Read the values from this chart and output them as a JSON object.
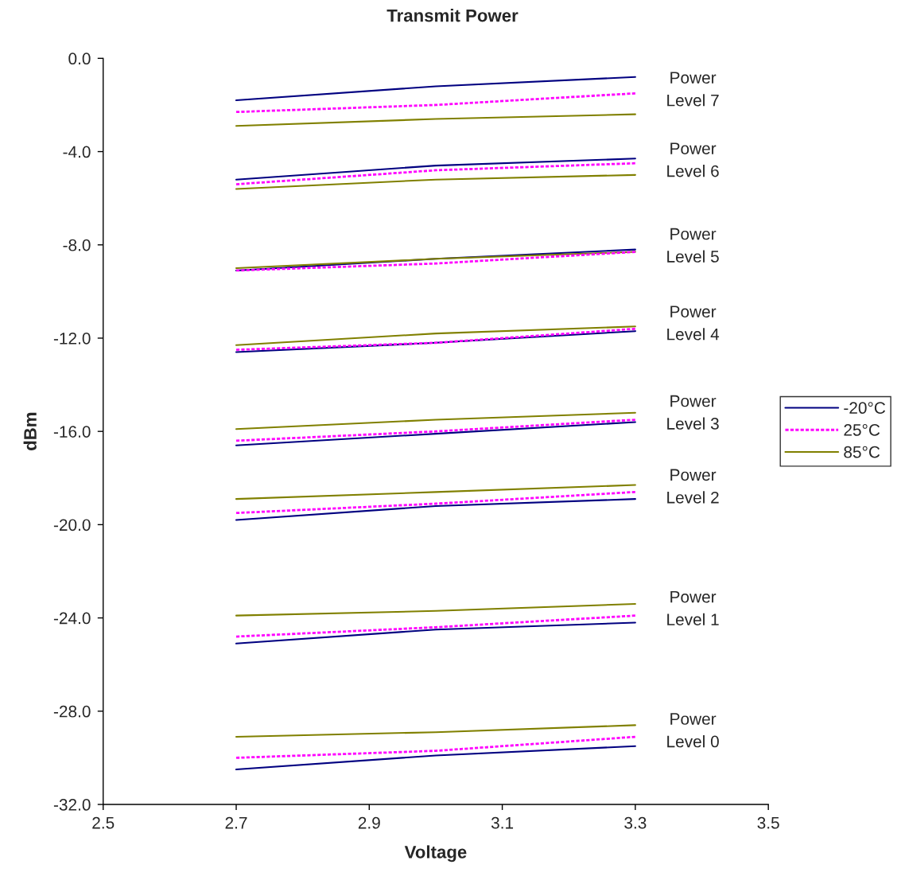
{
  "chart_data": {
    "type": "line",
    "title": "Transmit Power",
    "xlabel": "Voltage",
    "ylabel": "dBm",
    "xlim": [
      2.5,
      3.5
    ],
    "xticks": [
      2.5,
      2.7,
      2.9,
      3.1,
      3.3,
      3.5
    ],
    "ylim": [
      -32,
      0
    ],
    "yticks": [
      {
        "value": -32,
        "label": "-32.0"
      },
      {
        "value": -28,
        "label": "-28.0"
      },
      {
        "value": -24,
        "label": "-24.0"
      },
      {
        "value": -20,
        "label": "-20.0"
      },
      {
        "value": -16,
        "label": "-16.0"
      },
      {
        "value": -12,
        "label": "-12.0"
      },
      {
        "value": -8,
        "label": "-8.0"
      },
      {
        "value": -4,
        "label": "-4.0"
      },
      {
        "value": 0,
        "label": "0.0"
      }
    ],
    "x": [
      2.7,
      3.0,
      3.3
    ],
    "grid": false,
    "legend": "right",
    "marker": "none",
    "series": [
      {
        "name": "-20°C",
        "color": "#000080",
        "line_style": "solid",
        "values": [
          -1.8,
          -1.2,
          -0.8
        ]
      },
      {
        "name": "25°C",
        "color": "#ff00ff",
        "line_style": "dotted",
        "values": [
          -2.3,
          -2.0,
          -1.5
        ]
      },
      {
        "name": "85°C",
        "color": "#808000",
        "line_style": "solid",
        "values": [
          -2.9,
          -2.6,
          -2.4
        ]
      },
      {
        "color": "#000080",
        "line_style": "solid",
        "values": [
          -5.2,
          -4.6,
          -4.3
        ]
      },
      {
        "color": "#ff00ff",
        "line_style": "dotted",
        "values": [
          -5.4,
          -4.8,
          -4.5
        ]
      },
      {
        "color": "#808000",
        "line_style": "solid",
        "values": [
          -5.6,
          -5.2,
          -5.0
        ]
      },
      {
        "color": "#000080",
        "line_style": "solid",
        "values": [
          -9.1,
          -8.6,
          -8.2
        ]
      },
      {
        "color": "#ff00ff",
        "line_style": "dotted",
        "values": [
          -9.1,
          -8.8,
          -8.3
        ]
      },
      {
        "color": "#808000",
        "line_style": "solid",
        "values": [
          -9.0,
          -8.6,
          -8.3
        ]
      },
      {
        "color": "#000080",
        "line_style": "solid",
        "values": [
          -12.6,
          -12.2,
          -11.7
        ]
      },
      {
        "color": "#ff00ff",
        "line_style": "dotted",
        "values": [
          -12.5,
          -12.2,
          -11.6
        ]
      },
      {
        "color": "#808000",
        "line_style": "solid",
        "values": [
          -12.3,
          -11.8,
          -11.5
        ]
      },
      {
        "color": "#000080",
        "line_style": "solid",
        "values": [
          -16.6,
          -16.1,
          -15.6
        ]
      },
      {
        "color": "#ff00ff",
        "line_style": "dotted",
        "values": [
          -16.4,
          -16.0,
          -15.5
        ]
      },
      {
        "color": "#808000",
        "line_style": "solid",
        "values": [
          -15.9,
          -15.5,
          -15.2
        ]
      },
      {
        "color": "#000080",
        "line_style": "solid",
        "values": [
          -19.8,
          -19.2,
          -18.9
        ]
      },
      {
        "color": "#ff00ff",
        "line_style": "dotted",
        "values": [
          -19.5,
          -19.1,
          -18.6
        ]
      },
      {
        "color": "#808000",
        "line_style": "solid",
        "values": [
          -18.9,
          -18.6,
          -18.3
        ]
      },
      {
        "color": "#000080",
        "line_style": "solid",
        "values": [
          -25.1,
          -24.5,
          -24.2
        ]
      },
      {
        "color": "#ff00ff",
        "line_style": "dotted",
        "values": [
          -24.8,
          -24.4,
          -23.9
        ]
      },
      {
        "color": "#808000",
        "line_style": "solid",
        "values": [
          -23.9,
          -23.7,
          -23.4
        ]
      },
      {
        "color": "#000080",
        "line_style": "solid",
        "values": [
          -30.5,
          -29.9,
          -29.5
        ]
      },
      {
        "color": "#ff00ff",
        "line_style": "dotted",
        "values": [
          -30.0,
          -29.7,
          -29.1
        ]
      },
      {
        "color": "#808000",
        "line_style": "solid",
        "values": [
          -29.1,
          -28.9,
          -28.6
        ]
      }
    ],
    "annotations": [
      "Power\nLevel 7",
      "Power\nLevel 6",
      "Power\nLevel 5",
      "Power\nLevel 4",
      "Power\nLevel 3",
      "Power\nLevel 2",
      "Power\nLevel 1",
      "Power\nLevel 0"
    ]
  }
}
